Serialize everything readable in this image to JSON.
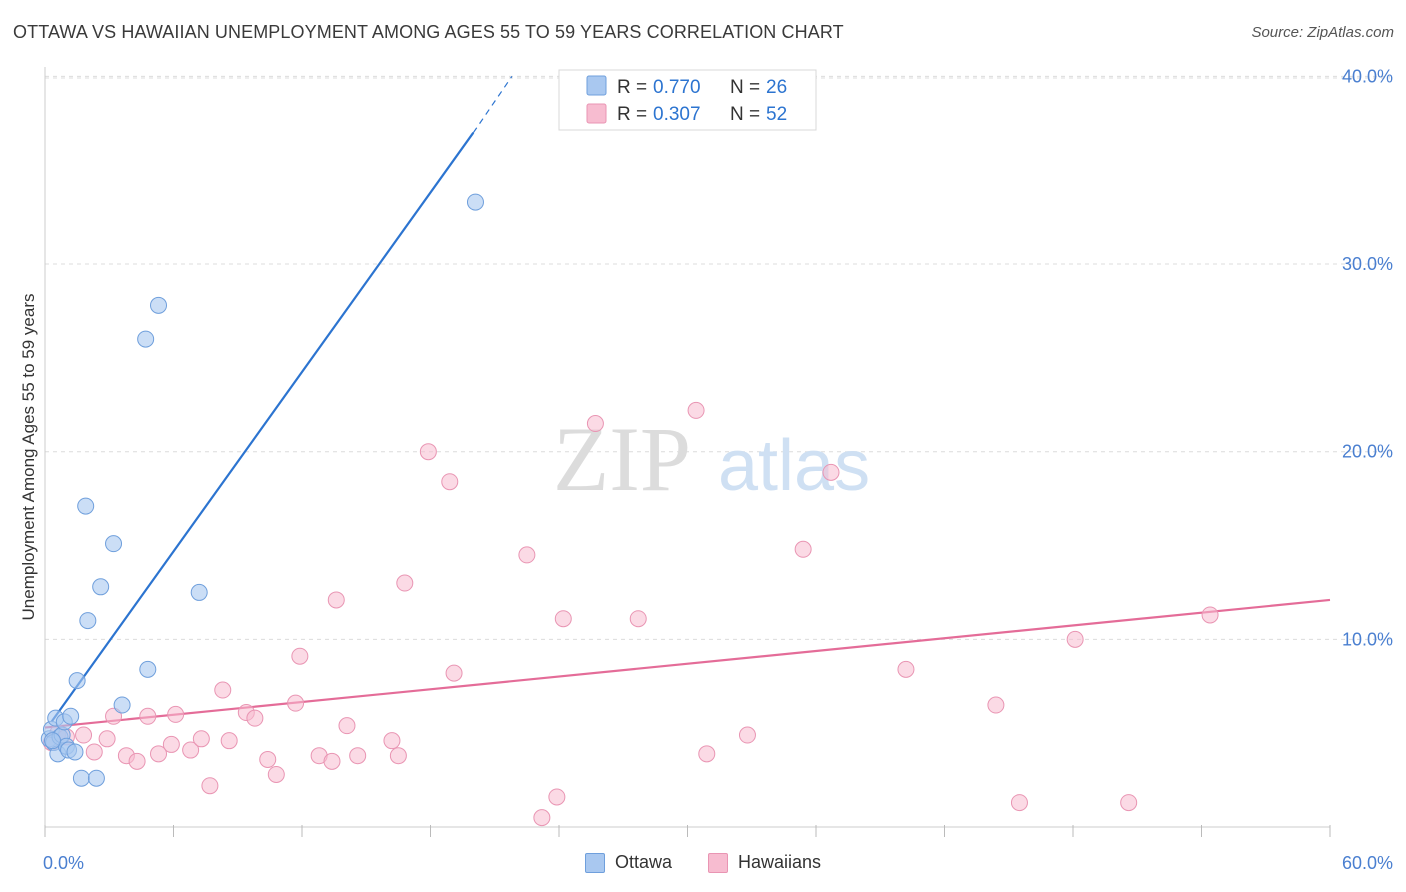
{
  "title": "OTTAWA VS HAWAIIAN UNEMPLOYMENT AMONG AGES 55 TO 59 YEARS CORRELATION CHART",
  "source": "Source: ZipAtlas.com",
  "watermark": {
    "zip": "ZIP",
    "atlas": "atlas"
  },
  "legend_top": [
    {
      "r_label": "R = ",
      "r_value": "0.770",
      "n_label": "N = ",
      "n_value": "26"
    },
    {
      "r_label": "R = ",
      "r_value": "0.307",
      "n_label": "N = ",
      "n_value": "52"
    }
  ],
  "legend_bottom": [
    "Ottawa",
    "Hawaiians"
  ],
  "colors": {
    "ottawa_fill": "#a9c8f0",
    "ottawa_stroke": "#6f9fdc",
    "ottawa_line": "#2c74d0",
    "hawaiian_fill": "#f7bcd0",
    "hawaiian_stroke": "#e995b3",
    "hawaiian_line": "#e46c98",
    "tick_label": "#4a7fd0",
    "grid": "#dcdcdc"
  },
  "chart_data": {
    "type": "scatter",
    "title": "OTTAWA VS HAWAIIAN UNEMPLOYMENT AMONG AGES 55 TO 59 YEARS CORRELATION CHART",
    "xlabel": "",
    "ylabel": "Unemployment Among Ages 55 to 59 years",
    "xlim": [
      0,
      60
    ],
    "ylim": [
      0,
      40.5
    ],
    "x_tick_labels": [
      "0.0%",
      "60.0%"
    ],
    "y_ticks": [
      10,
      20,
      30,
      40
    ],
    "y_tick_labels": [
      "10.0%",
      "20.0%",
      "30.0%",
      "40.0%"
    ],
    "grid": true,
    "legend_position": "top-center",
    "series": [
      {
        "name": "Ottawa",
        "R": 0.77,
        "N": 26,
        "points": [
          [
            0.2,
            4.7
          ],
          [
            0.3,
            5.2
          ],
          [
            0.4,
            4.5
          ],
          [
            0.5,
            5.8
          ],
          [
            0.6,
            3.9
          ],
          [
            0.7,
            4.8
          ],
          [
            0.8,
            4.9
          ],
          [
            0.9,
            5.6
          ],
          [
            1.0,
            4.3
          ],
          [
            1.1,
            4.1
          ],
          [
            1.2,
            5.9
          ],
          [
            1.4,
            4.0
          ],
          [
            1.5,
            7.8
          ],
          [
            1.7,
            2.6
          ],
          [
            1.9,
            17.1
          ],
          [
            2.0,
            11.0
          ],
          [
            2.4,
            2.6
          ],
          [
            2.6,
            12.8
          ],
          [
            3.2,
            15.1
          ],
          [
            3.6,
            6.5
          ],
          [
            4.7,
            26.0
          ],
          [
            4.8,
            8.4
          ],
          [
            5.3,
            27.8
          ],
          [
            7.2,
            12.5
          ],
          [
            20.1,
            33.3
          ],
          [
            0.35,
            4.6
          ]
        ],
        "trendline": {
          "x": [
            0.3,
            20.0
          ],
          "y": [
            5.6,
            37.0
          ],
          "dashed_to": [
            21.8,
            40.0
          ]
        }
      },
      {
        "name": "Hawaiians",
        "R": 0.307,
        "N": 52,
        "points": [
          [
            0.3,
            4.5
          ],
          [
            0.6,
            5.0
          ],
          [
            1.0,
            4.8
          ],
          [
            1.8,
            4.9
          ],
          [
            2.3,
            4.0
          ],
          [
            2.9,
            4.7
          ],
          [
            3.2,
            5.9
          ],
          [
            3.8,
            3.8
          ],
          [
            4.3,
            3.5
          ],
          [
            4.8,
            5.9
          ],
          [
            5.3,
            3.9
          ],
          [
            5.9,
            4.4
          ],
          [
            6.1,
            6.0
          ],
          [
            6.8,
            4.1
          ],
          [
            7.3,
            4.7
          ],
          [
            7.7,
            2.2
          ],
          [
            8.3,
            7.3
          ],
          [
            8.6,
            4.6
          ],
          [
            9.4,
            6.1
          ],
          [
            9.8,
            5.8
          ],
          [
            10.4,
            3.6
          ],
          [
            10.8,
            2.8
          ],
          [
            11.7,
            6.6
          ],
          [
            11.9,
            9.1
          ],
          [
            12.8,
            3.8
          ],
          [
            13.4,
            3.5
          ],
          [
            13.6,
            12.1
          ],
          [
            14.1,
            5.4
          ],
          [
            14.6,
            3.8
          ],
          [
            16.2,
            4.6
          ],
          [
            16.5,
            3.8
          ],
          [
            16.8,
            13.0
          ],
          [
            17.9,
            20.0
          ],
          [
            18.9,
            18.4
          ],
          [
            19.1,
            8.2
          ],
          [
            22.5,
            14.5
          ],
          [
            23.2,
            0.5
          ],
          [
            23.9,
            1.6
          ],
          [
            24.2,
            11.1
          ],
          [
            25.7,
            21.5
          ],
          [
            27.7,
            11.1
          ],
          [
            30.4,
            22.2
          ],
          [
            30.9,
            3.9
          ],
          [
            32.8,
            4.9
          ],
          [
            35.4,
            14.8
          ],
          [
            36.7,
            18.9
          ],
          [
            40.2,
            8.4
          ],
          [
            44.4,
            6.5
          ],
          [
            45.5,
            1.3
          ],
          [
            48.1,
            10.0
          ],
          [
            50.6,
            1.3
          ],
          [
            54.4,
            11.3
          ]
        ],
        "trendline": {
          "x": [
            0.0,
            60.0
          ],
          "y": [
            5.3,
            12.1
          ]
        }
      }
    ]
  }
}
